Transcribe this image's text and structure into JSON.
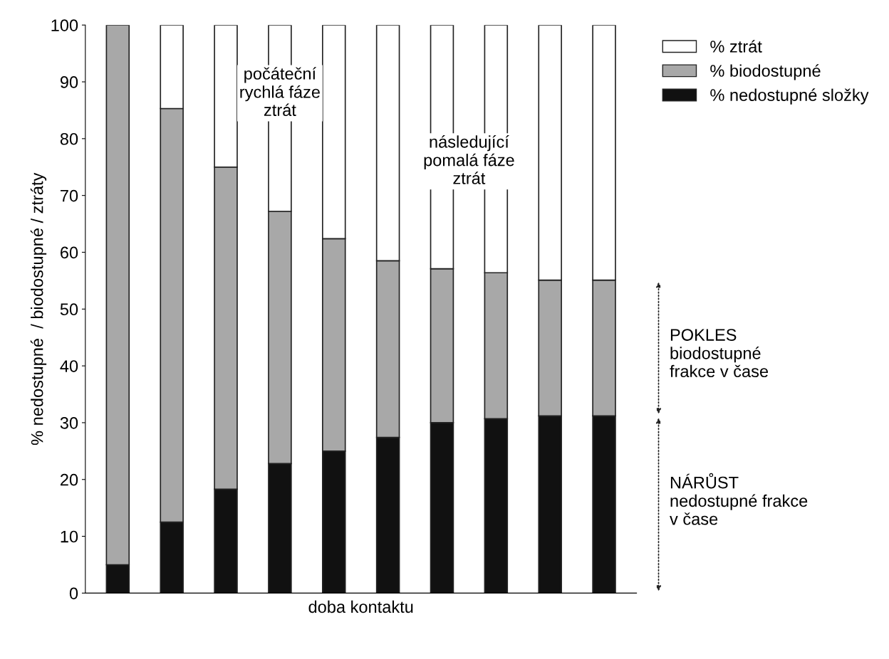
{
  "chart_data": {
    "type": "bar",
    "stacked": true,
    "xlabel": "doba kontaktu",
    "ylabel": "% nedostupné  / biodostupné / ztráty",
    "categories": [
      null,
      null,
      null,
      null,
      null,
      null,
      null,
      null,
      null,
      null
    ],
    "series": [
      {
        "name": "% nedostupné složky",
        "color": "#111111",
        "values": [
          5,
          12.5,
          18.3,
          22.8,
          25,
          27.4,
          30,
          30.7,
          31.2,
          31.2
        ]
      },
      {
        "name": "% biodostupné",
        "color": "#a8a8a8",
        "values": [
          95,
          72.8,
          56.7,
          44.4,
          37.4,
          31.1,
          27.1,
          25.7,
          23.9,
          23.9
        ]
      },
      {
        "name": "% ztrát",
        "color": "#ffffff",
        "values": [
          null,
          14.7,
          25,
          32.8,
          37.6,
          41.5,
          42.9,
          43.6,
          44.9,
          44.9
        ]
      }
    ],
    "ylim": [
      0,
      100
    ],
    "yticks": [
      0,
      10,
      20,
      30,
      40,
      50,
      60,
      70,
      80,
      90,
      100
    ],
    "grid": false,
    "legend": "top right",
    "annotations": [
      "počáteční\nrychlá fáze\nztrát",
      "následující\npomalá fáze\nztrát",
      "POKLES\nbiodostupné\nfrakce v čase",
      "NÁRŮST\nnedostupné frakce\nv čase"
    ]
  }
}
